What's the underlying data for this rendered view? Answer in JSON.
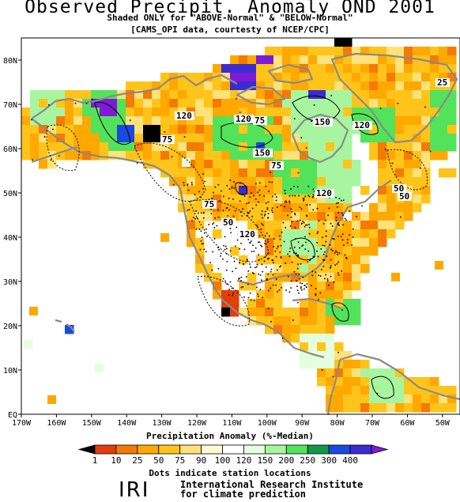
{
  "title": "Observed Precipit. Anomaly OND 2001",
  "subtitle": "Shaded ONLY for \"ABOVE-Normal\" & \"BELOW-Normal\"",
  "source_note": "[CAMS_OPI data, courtesty of NCEP/CPC]",
  "lon_labels": [
    "170W",
    "160W",
    "150W",
    "140W",
    "130W",
    "120W",
    "110W",
    "100W",
    "90W",
    "80W",
    "70W",
    "60W",
    "50W"
  ],
  "lat_labels": [
    "EQ",
    "10N",
    "20N",
    "30N",
    "40N",
    "50N",
    "60N",
    "70N",
    "80N"
  ],
  "contour_labels": [
    "120",
    "120",
    "75",
    "150",
    "120",
    "150",
    "75",
    "120",
    "75",
    "50",
    "25",
    "75",
    "50",
    "50",
    "120"
  ],
  "colorbar": {
    "title": "Precipitation Anomaly (%-Median)",
    "ticks": [
      "1",
      "10",
      "25",
      "50",
      "75",
      "90",
      "100",
      "120",
      "150",
      "200",
      "250",
      "300",
      "400"
    ],
    "colors": [
      "#000000",
      "#e13e0a",
      "#f57a05",
      "#ffa800",
      "#ffc41a",
      "#ffe27a",
      "#fff8d6",
      "#ffffff",
      "#e4ffdf",
      "#a8f5a0",
      "#53e35a",
      "#109a48",
      "#1b49e0",
      "#3b2bd0",
      "#7f1ad8"
    ]
  },
  "station_note": "Dots indicate station locations",
  "logo_text": "IRI",
  "institute": {
    "line1": "International Research Institute",
    "line2": "for climate prediction"
  }
}
